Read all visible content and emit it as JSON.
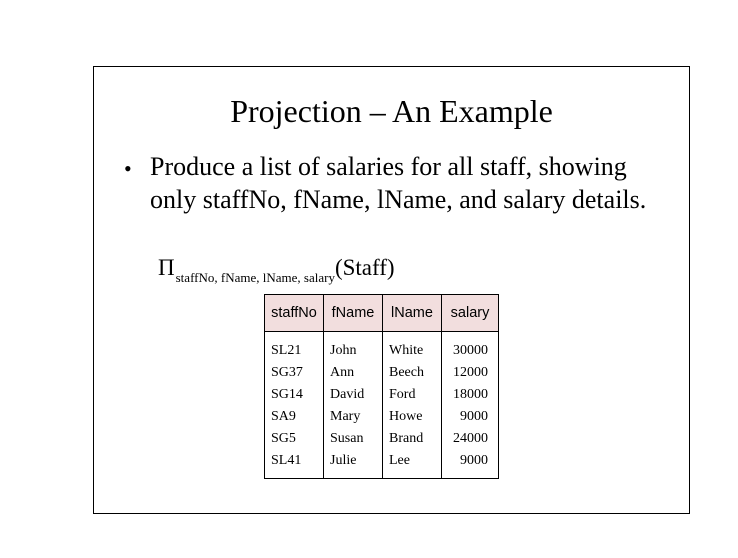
{
  "slide": {
    "title": "Projection – An Example",
    "bullet_symbol": "•",
    "bullet_text": "Produce a list of salaries for all staff, showing only  staffNo, fName, lName, and salary details.",
    "formula": {
      "operator": "Π",
      "subscript": "staffNo, fName, lName, salary",
      "argument": "(Staff)"
    }
  },
  "table": {
    "headers": [
      "staffNo",
      "fName",
      "lName",
      "salary"
    ],
    "rows": [
      [
        "SL21",
        "John",
        "White",
        "30000"
      ],
      [
        "SG37",
        "Ann",
        "Beech",
        "12000"
      ],
      [
        "SG14",
        "David",
        "Ford",
        "18000"
      ],
      [
        "SA9",
        "Mary",
        "Howe",
        "9000"
      ],
      [
        "SG5",
        "Susan",
        "Brand",
        "24000"
      ],
      [
        "SL41",
        "Julie",
        "Lee",
        "9000"
      ]
    ]
  },
  "colors": {
    "header_bg": "#f2dede",
    "border": "#000000"
  }
}
